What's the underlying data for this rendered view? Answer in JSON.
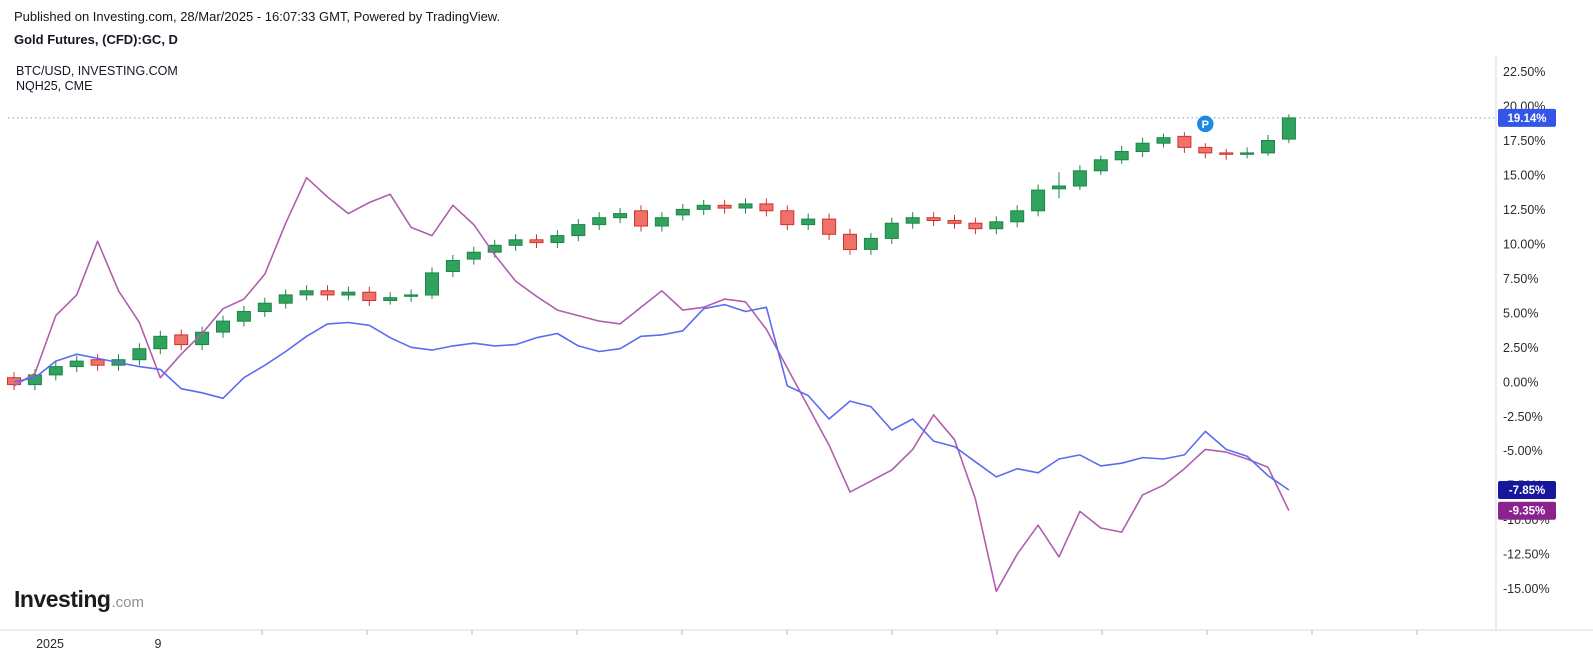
{
  "header": {
    "published_line": "Published on Investing.com, 28/Mar/2025 - 16:07:33 GMT, Powered by TradingView.",
    "instrument_line": "Gold Futures, (CFD):GC, D"
  },
  "legend": {
    "line1": "BTC/USD, INVESTING.COM",
    "line2": "NQH25, CME"
  },
  "logo": {
    "text_bold": "Investing",
    "text_suffix": ".com"
  },
  "colors": {
    "up": "#2fa35c",
    "up_border": "#1e8448",
    "down": "#f0716a",
    "down_border": "#cc342c",
    "btc_line": "#5a6cf0",
    "nq_line": "#b05fad",
    "badge_gold_bg": "#3355e8",
    "badge_btc_bg": "#17179c",
    "badge_nq_bg": "#8b2290",
    "marker_bg": "#1e88e5",
    "reference_line": "#6f9bd8",
    "axis_text": "#2b2b2b",
    "axis_line": "#d7d9de",
    "tick_mark": "#b5b8bf"
  },
  "chart_data": {
    "type": "candlestick+line",
    "title": "Gold Futures, (CFD):GC, D",
    "unit": "% change",
    "reference_line_pct": 19.14,
    "y_axis": {
      "min": -18,
      "max": 23.7,
      "tick_labels": [
        "22.50%",
        "20.00%",
        "17.50%",
        "15.00%",
        "12.50%",
        "10.00%",
        "7.50%",
        "5.00%",
        "2.50%",
        "0.00%",
        "-2.50%",
        "-5.00%",
        "-7.50%",
        "-10.00%",
        "-12.50%",
        "-15.00%"
      ]
    },
    "x_axis": {
      "labels": [
        {
          "text": "2025",
          "x": 50
        },
        {
          "text": "9",
          "x": 158
        }
      ]
    },
    "marker": {
      "label": "P",
      "index": 57,
      "value": 18.7
    },
    "series": [
      {
        "name": "Gold Futures (CFD):GC",
        "type": "candlestick",
        "last_value": 19.14,
        "last_label": "19.14%",
        "candles": [
          [
            0.3,
            0.7,
            -0.6,
            -0.2
          ],
          [
            -0.2,
            0.9,
            -0.6,
            0.5
          ],
          [
            0.5,
            1.5,
            0.1,
            1.1
          ],
          [
            1.1,
            1.9,
            0.7,
            1.5
          ],
          [
            1.6,
            2.0,
            0.8,
            1.2
          ],
          [
            1.2,
            2.0,
            0.8,
            1.6
          ],
          [
            1.6,
            2.8,
            1.2,
            2.4
          ],
          [
            2.4,
            3.7,
            2.0,
            3.3
          ],
          [
            3.4,
            3.8,
            2.3,
            2.7
          ],
          [
            2.7,
            4.0,
            2.3,
            3.6
          ],
          [
            3.6,
            4.8,
            3.2,
            4.4
          ],
          [
            4.4,
            5.5,
            4.0,
            5.1
          ],
          [
            5.1,
            6.1,
            4.7,
            5.7
          ],
          [
            5.7,
            6.7,
            5.3,
            6.3
          ],
          [
            6.3,
            7.0,
            5.9,
            6.6
          ],
          [
            6.6,
            7.0,
            5.9,
            6.3
          ],
          [
            6.3,
            6.9,
            5.9,
            6.5
          ],
          [
            6.5,
            6.9,
            5.5,
            5.9
          ],
          [
            5.9,
            6.5,
            5.6,
            6.1
          ],
          [
            6.2,
            6.7,
            5.8,
            6.3
          ],
          [
            6.3,
            8.3,
            6.0,
            7.9
          ],
          [
            8.0,
            9.2,
            7.6,
            8.8
          ],
          [
            8.9,
            9.8,
            8.5,
            9.4
          ],
          [
            9.4,
            10.3,
            9.0,
            9.9
          ],
          [
            9.9,
            10.7,
            9.5,
            10.3
          ],
          [
            10.3,
            10.7,
            9.7,
            10.1
          ],
          [
            10.1,
            11.0,
            9.7,
            10.6
          ],
          [
            10.6,
            11.8,
            10.2,
            11.4
          ],
          [
            11.4,
            12.3,
            11.0,
            11.9
          ],
          [
            11.9,
            12.6,
            11.5,
            12.2
          ],
          [
            12.4,
            12.8,
            10.9,
            11.3
          ],
          [
            11.3,
            12.3,
            10.9,
            11.9
          ],
          [
            12.1,
            12.9,
            11.7,
            12.5
          ],
          [
            12.5,
            13.2,
            12.1,
            12.8
          ],
          [
            12.8,
            13.2,
            12.2,
            12.6
          ],
          [
            12.6,
            13.3,
            12.2,
            12.9
          ],
          [
            12.9,
            13.3,
            12.0,
            12.4
          ],
          [
            12.4,
            12.8,
            11.0,
            11.4
          ],
          [
            11.4,
            12.2,
            11.0,
            11.8
          ],
          [
            11.8,
            12.2,
            10.3,
            10.7
          ],
          [
            10.7,
            11.1,
            9.2,
            9.6
          ],
          [
            9.6,
            10.8,
            9.2,
            10.4
          ],
          [
            10.4,
            11.9,
            10.0,
            11.5
          ],
          [
            11.5,
            12.3,
            11.1,
            11.9
          ],
          [
            11.9,
            12.3,
            11.3,
            11.7
          ],
          [
            11.7,
            12.1,
            11.1,
            11.5
          ],
          [
            11.5,
            11.9,
            10.7,
            11.1
          ],
          [
            11.1,
            12.0,
            10.7,
            11.6
          ],
          [
            11.6,
            12.8,
            11.2,
            12.4
          ],
          [
            12.4,
            14.3,
            12.0,
            13.9
          ],
          [
            14.0,
            15.2,
            13.3,
            14.2
          ],
          [
            14.2,
            15.7,
            13.9,
            15.3
          ],
          [
            15.3,
            16.4,
            15.0,
            16.1
          ],
          [
            16.1,
            17.1,
            15.8,
            16.7
          ],
          [
            16.7,
            17.7,
            16.3,
            17.3
          ],
          [
            17.3,
            18.0,
            17.0,
            17.7
          ],
          [
            17.8,
            18.1,
            16.6,
            17.0
          ],
          [
            17.0,
            17.3,
            16.2,
            16.6
          ],
          [
            16.6,
            16.9,
            16.1,
            16.5
          ],
          [
            16.5,
            17.0,
            16.2,
            16.6
          ],
          [
            16.6,
            17.9,
            16.4,
            17.5
          ],
          [
            17.6,
            19.4,
            17.3,
            19.14
          ]
        ]
      },
      {
        "name": "BTC/USD",
        "type": "line",
        "last_value": -7.85,
        "last_label": "-7.85%",
        "values": [
          0.0,
          0.3,
          1.5,
          2.0,
          1.7,
          1.4,
          1.1,
          0.9,
          -0.5,
          -0.8,
          -1.2,
          0.3,
          1.2,
          2.2,
          3.3,
          4.2,
          4.3,
          4.1,
          3.2,
          2.5,
          2.3,
          2.6,
          2.8,
          2.6,
          2.7,
          3.2,
          3.5,
          2.6,
          2.2,
          2.4,
          3.3,
          3.4,
          3.7,
          5.3,
          5.6,
          5.1,
          5.4,
          -0.3,
          -1.0,
          -2.7,
          -1.4,
          -1.8,
          -3.5,
          -2.7,
          -4.3,
          -4.7,
          -5.8,
          -6.9,
          -6.3,
          -6.6,
          -5.6,
          -5.3,
          -6.1,
          -5.9,
          -5.5,
          -5.6,
          -5.3,
          -3.6,
          -4.9,
          -5.4,
          -6.8,
          -7.85
        ]
      },
      {
        "name": "NQH25",
        "type": "line",
        "last_value": -9.35,
        "last_label": "-9.35%",
        "values": [
          -0.3,
          0.6,
          4.8,
          6.3,
          10.2,
          6.6,
          4.3,
          0.3,
          2.0,
          3.5,
          5.3,
          6.0,
          7.8,
          11.5,
          14.8,
          13.4,
          12.2,
          13.0,
          13.6,
          11.2,
          10.6,
          12.8,
          11.4,
          9.2,
          7.3,
          6.2,
          5.2,
          4.8,
          4.4,
          4.2,
          5.4,
          6.6,
          5.2,
          5.4,
          6.0,
          5.8,
          3.8,
          1.0,
          -1.8,
          -4.6,
          -8.0,
          -7.2,
          -6.4,
          -4.9,
          -2.4,
          -4.2,
          -8.5,
          -15.2,
          -12.5,
          -10.4,
          -12.7,
          -9.4,
          -10.6,
          -10.9,
          -8.2,
          -7.5,
          -6.3,
          -4.9,
          -5.1,
          -5.6,
          -6.2,
          -9.35
        ]
      }
    ]
  }
}
